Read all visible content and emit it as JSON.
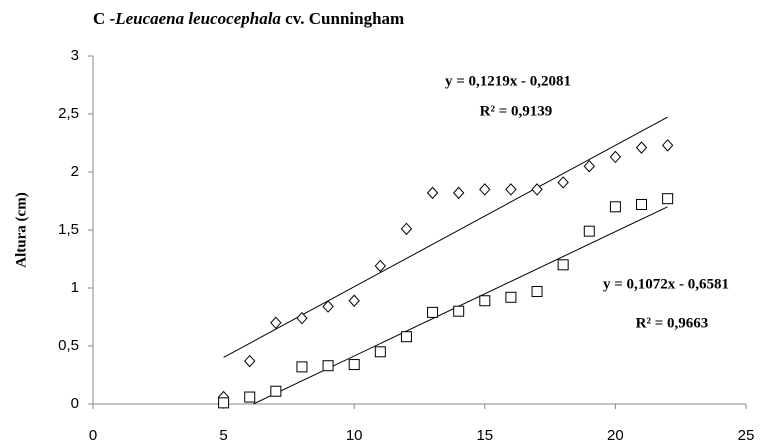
{
  "chart_data": {
    "type": "scatter",
    "title": [
      "C -",
      "Leucaena leucocephala",
      " cv. Cunningham"
    ],
    "y_label": "Altura (cm)",
    "xlim": [
      0,
      25
    ],
    "xticks": [
      0,
      5,
      10,
      15,
      20,
      25
    ],
    "ylim": [
      0,
      3
    ],
    "yticks": [
      0,
      {
        "value": 0.5,
        "label": "0,5"
      },
      1,
      {
        "value": 1.5,
        "label": "1,5"
      },
      2,
      {
        "value": 2.5,
        "label": "2,5"
      },
      3
    ],
    "series": [
      {
        "marker": "diamond",
        "color": "#000000",
        "x": [
          5,
          6,
          7,
          8,
          9,
          10,
          11,
          12,
          13,
          14,
          15,
          16,
          17,
          18,
          19,
          20,
          21,
          22
        ],
        "values": [
          0.06,
          0.37,
          0.7,
          0.74,
          0.84,
          0.89,
          1.19,
          1.51,
          1.82,
          1.82,
          1.85,
          1.85,
          1.85,
          1.91,
          2.05,
          2.13,
          2.21,
          2.23
        ],
        "trendline": {
          "slope": 0.1219,
          "intercept": -0.2081,
          "equation": "y = 0,1219x - 0,2081",
          "r2": "R² = 0,9139"
        }
      },
      {
        "marker": "square",
        "color": "#000000",
        "x": [
          5,
          6,
          7,
          8,
          9,
          10,
          11,
          12,
          13,
          14,
          15,
          16,
          17,
          18,
          19,
          20,
          21,
          22
        ],
        "values": [
          0.01,
          0.06,
          0.11,
          0.32,
          0.33,
          0.34,
          0.45,
          0.58,
          0.79,
          0.8,
          0.89,
          0.92,
          0.97,
          1.2,
          1.49,
          1.7,
          1.72,
          1.77
        ],
        "trendline": {
          "slope": 0.1072,
          "intercept": -0.6581,
          "equation": "y = 0,1072x - 0,6581",
          "r2": "R² = 0,9663"
        }
      }
    ]
  }
}
